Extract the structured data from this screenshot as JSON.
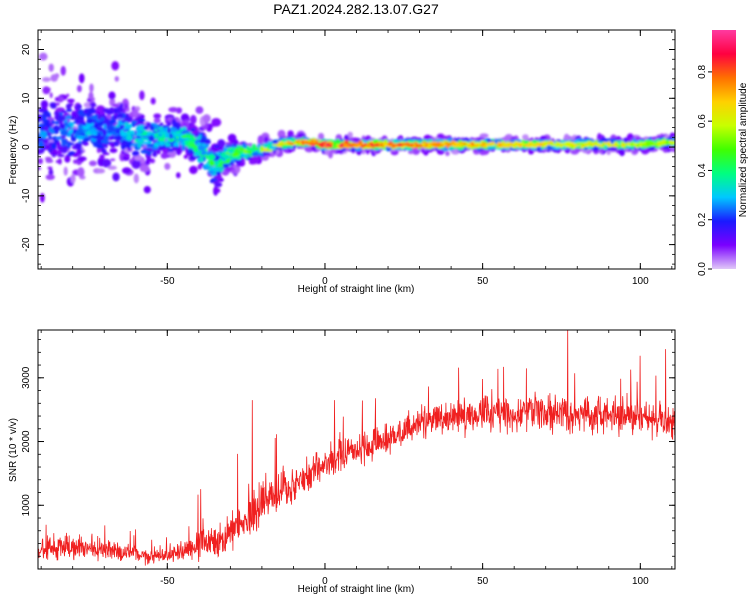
{
  "title": "PAZ1.2024.282.13.07.G27",
  "chart_data": [
    {
      "type": "heatmap",
      "xlabel": "Height of straight line (km)",
      "ylabel": "Frequency (Hz)",
      "xlim": [
        -91,
        111
      ],
      "ylim": [
        -25,
        24
      ],
      "xticks": [
        -50,
        0,
        50,
        100
      ],
      "yticks": [
        -20,
        -10,
        0,
        10,
        20
      ],
      "colorbar": {
        "label": "Normalized spectral amplitude",
        "range": [
          0,
          0.97
        ],
        "ticks": [
          0.0,
          0.2,
          0.4,
          0.6,
          0.8
        ],
        "colormap": [
          "#e0c8f8",
          "#7a00ff",
          "#1a1aff",
          "#00c8ff",
          "#00ff80",
          "#40ff00",
          "#c8ff00",
          "#ffd000",
          "#ff7000",
          "#ff0040",
          "#ff3aa0"
        ]
      },
      "ridge": {
        "x": [
          -90,
          -85,
          -80,
          -75,
          -70,
          -65,
          -60,
          -55,
          -50,
          -45,
          -40,
          -37,
          -35,
          -33,
          -30,
          -27,
          -25,
          -20,
          -15,
          -10,
          -5,
          0,
          10,
          20,
          30,
          40,
          50,
          60,
          70,
          80,
          90,
          100,
          110
        ],
        "freq": [
          3,
          4,
          3,
          4,
          3,
          4,
          2,
          2,
          2,
          2,
          0,
          -2,
          -4,
          -3,
          -1.5,
          -1,
          -1,
          -0.5,
          0.5,
          1,
          1,
          0.5,
          0.5,
          0.5,
          0.5,
          0.5,
          0.5,
          0.5,
          0.5,
          0.5,
          0.5,
          0.5,
          1
        ],
        "spread": [
          6,
          6,
          6,
          5,
          5,
          5,
          4,
          4,
          3,
          3,
          3,
          4,
          4,
          3,
          2,
          1.5,
          1.2,
          1,
          0.8,
          0.7,
          0.7,
          0.7,
          0.7,
          0.7,
          0.7,
          0.7,
          0.7,
          0.7,
          0.7,
          0.7,
          0.7,
          0.7,
          0.8
        ],
        "amplitude": [
          0.25,
          0.25,
          0.3,
          0.3,
          0.25,
          0.3,
          0.35,
          0.35,
          0.4,
          0.4,
          0.45,
          0.45,
          0.4,
          0.45,
          0.5,
          0.55,
          0.55,
          0.6,
          0.65,
          0.7,
          0.75,
          0.85,
          0.8,
          0.75,
          0.75,
          0.7,
          0.7,
          0.65,
          0.65,
          0.6,
          0.6,
          0.55,
          0.55
        ]
      }
    },
    {
      "type": "line",
      "xlabel": "Height of straight line (km)",
      "ylabel": "SNR (10 * v/v)",
      "xlim": [
        -91,
        111
      ],
      "ylim": [
        0,
        3750
      ],
      "xticks": [
        -50,
        0,
        50,
        100
      ],
      "yticks": [
        1000,
        2000,
        3000
      ],
      "color": "#f02020",
      "series": [
        {
          "x": [
            -91,
            -85,
            -80,
            -75,
            -70,
            -65,
            -60,
            -55,
            -50,
            -45,
            -40,
            -35,
            -32,
            -30,
            -27,
            -25,
            -22,
            -20,
            -15,
            -10,
            -5,
            0,
            5,
            10,
            15,
            20,
            25,
            30,
            35,
            40,
            50,
            60,
            70,
            80,
            90,
            100,
            105,
            111
          ],
          "mean": [
            300,
            330,
            360,
            330,
            290,
            250,
            210,
            200,
            220,
            300,
            420,
            450,
            450,
            680,
            750,
            780,
            900,
            1050,
            1200,
            1320,
            1480,
            1650,
            1750,
            1850,
            1950,
            2050,
            2150,
            2300,
            2350,
            2400,
            2450,
            2450,
            2450,
            2450,
            2400,
            2400,
            2350,
            2300
          ],
          "noise": [
            180,
            180,
            180,
            170,
            160,
            150,
            140,
            140,
            140,
            180,
            260,
            260,
            250,
            330,
            340,
            340,
            330,
            320,
            320,
            310,
            300,
            280,
            280,
            270,
            250,
            250,
            240,
            240,
            240,
            240,
            250,
            250,
            270,
            270,
            260,
            260,
            270,
            270
          ]
        }
      ],
      "spikes": [
        {
          "x": -23,
          "y": 2650
        },
        {
          "x": 3,
          "y": 2650
        },
        {
          "x": 77,
          "y": 3800
        },
        {
          "x": 108,
          "y": 3450
        }
      ]
    }
  ]
}
